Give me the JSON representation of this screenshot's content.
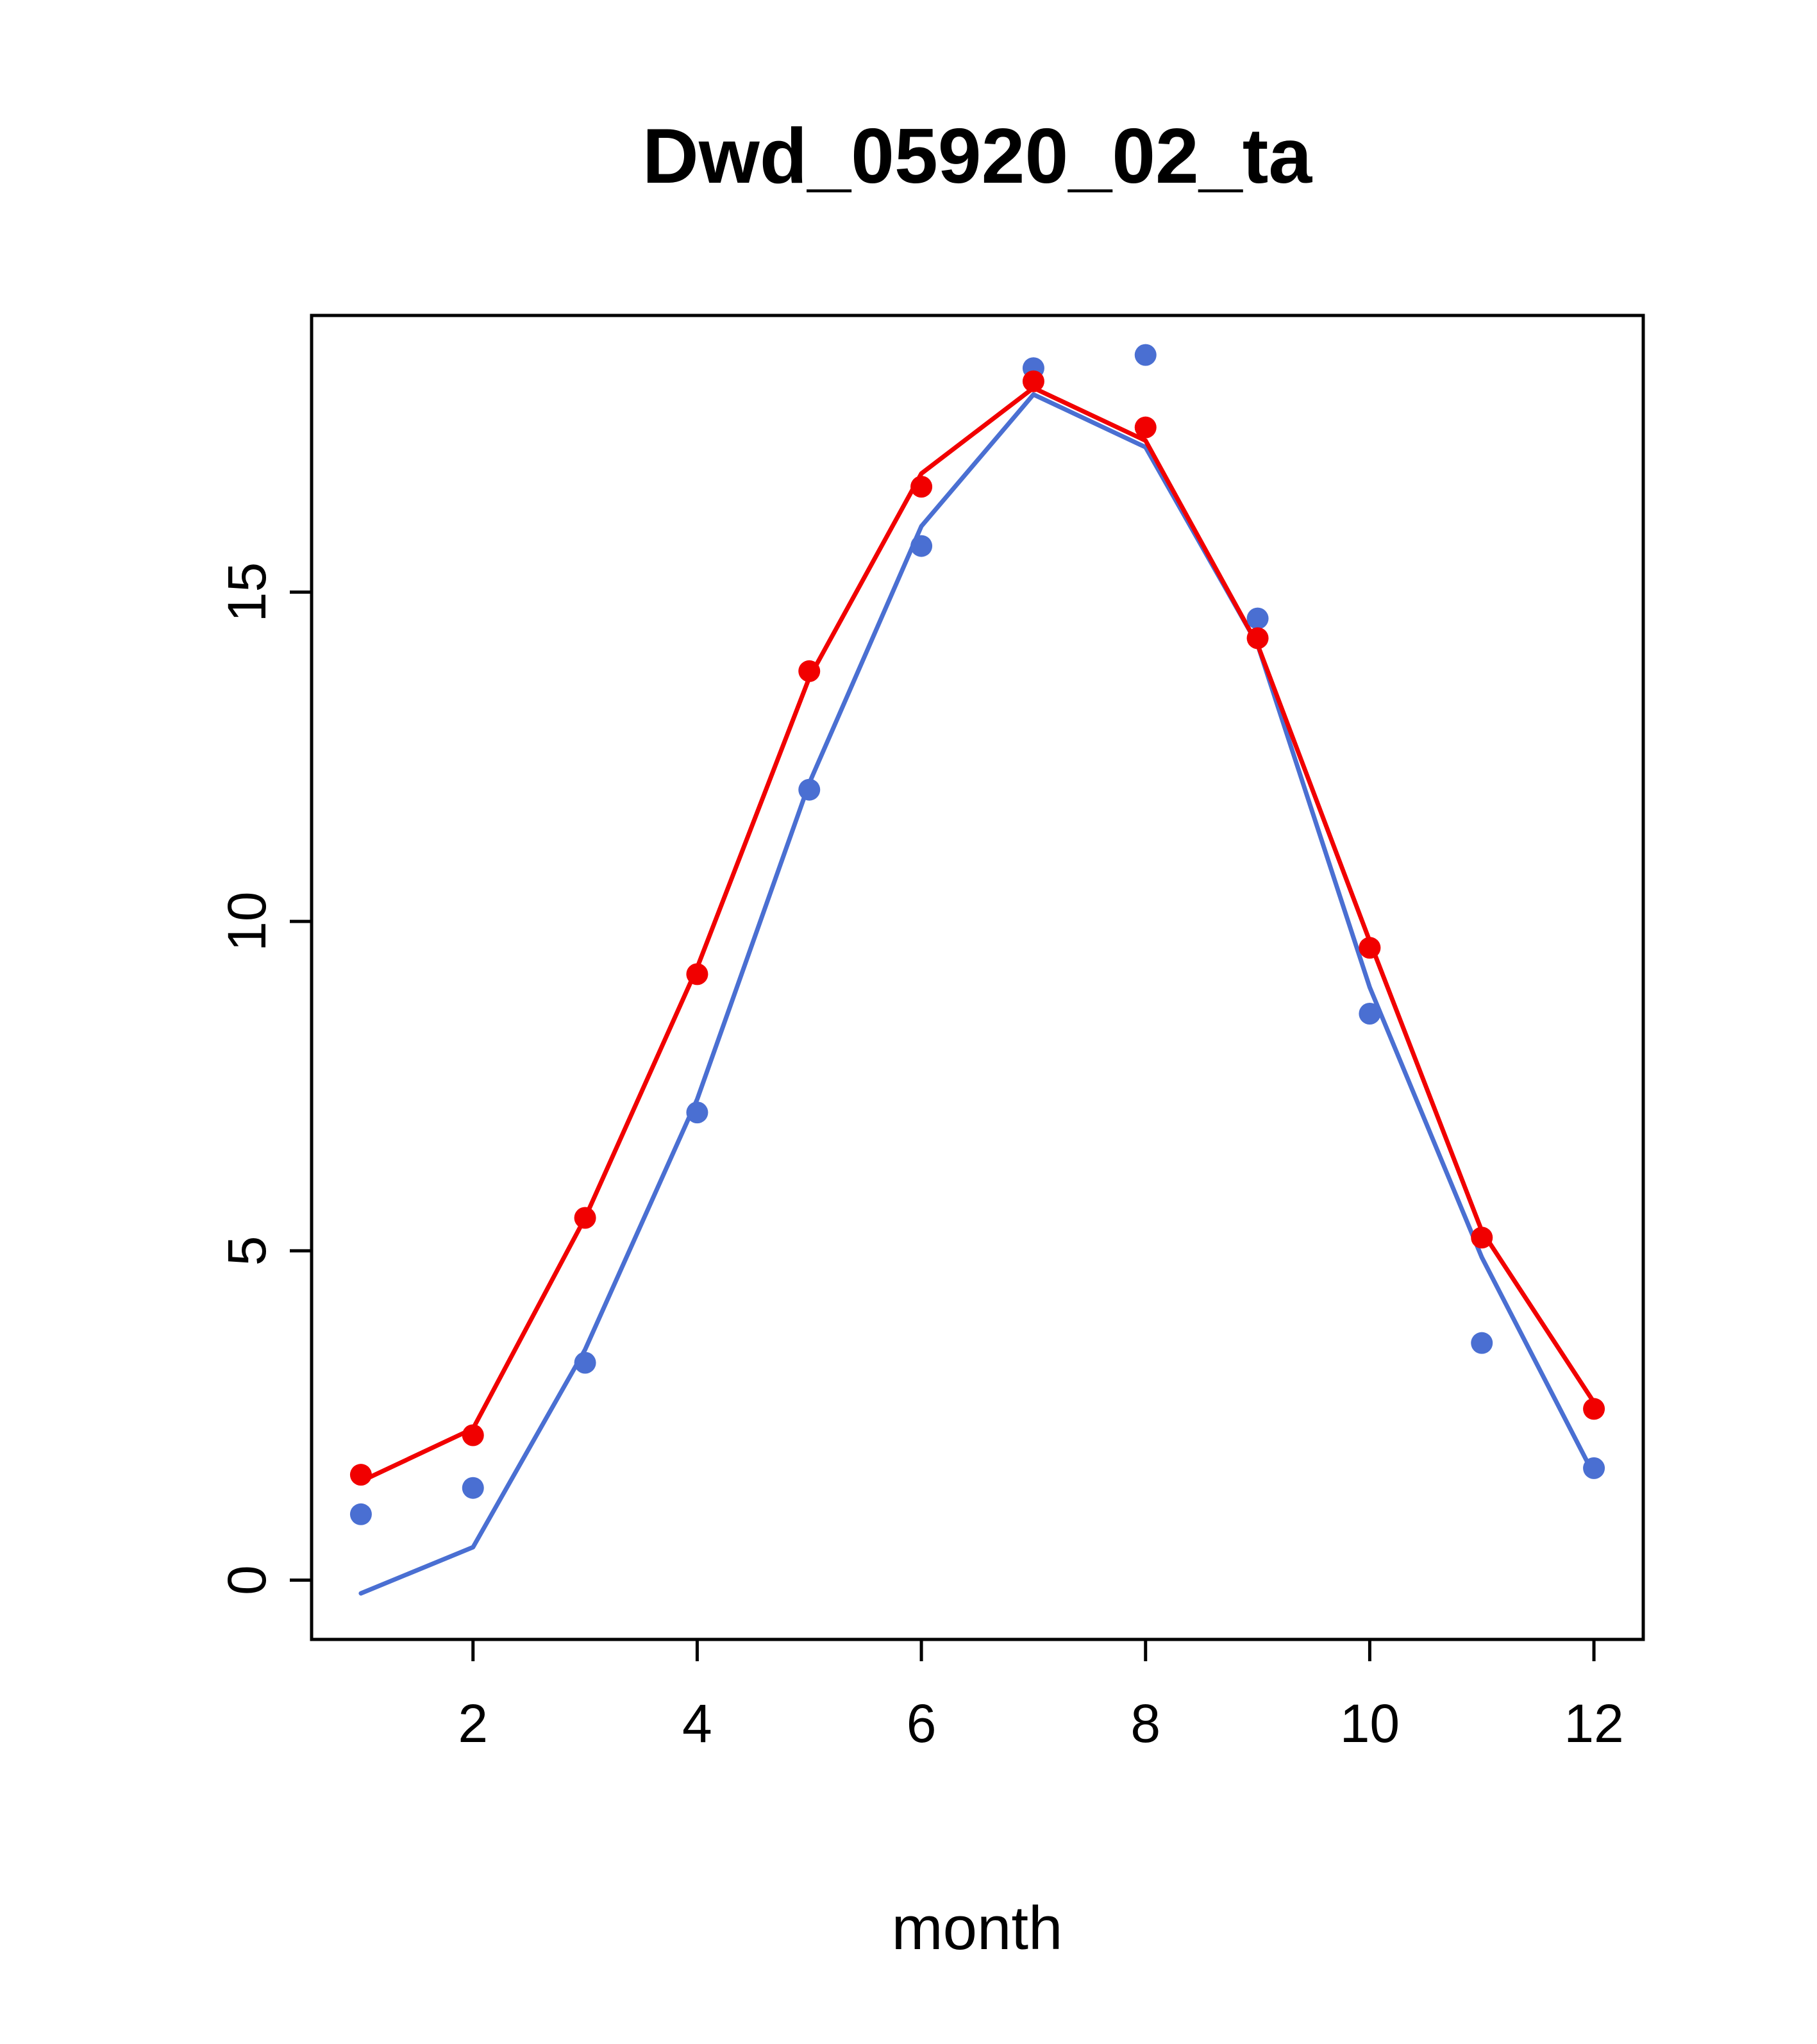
{
  "title": "Dwd_05920_02_ta",
  "chart_data": {
    "type": "scatter",
    "title": "Dwd_05920_02_ta",
    "xlabel": "month",
    "ylabel": "",
    "x": [
      1,
      2,
      3,
      4,
      5,
      6,
      7,
      8,
      9,
      10,
      11,
      12
    ],
    "xlim": [
      0.56,
      12.44
    ],
    "ylim": [
      -0.9,
      19.2
    ],
    "xticks": [
      2,
      4,
      6,
      8,
      10,
      12
    ],
    "yticks": [
      0,
      5,
      10,
      15
    ],
    "grid": false,
    "legend": "none",
    "series": [
      {
        "name": "blue-fitted-line",
        "geom": "line",
        "color": "#4a6fd2",
        "values": [
          -0.2,
          0.5,
          3.5,
          7.3,
          12.1,
          16.0,
          18.0,
          17.2,
          14.2,
          9.0,
          4.9,
          1.6
        ]
      },
      {
        "name": "red-fitted-line",
        "geom": "line",
        "color": "#f10000",
        "values": [
          1.5,
          2.3,
          5.5,
          9.3,
          13.7,
          16.8,
          18.1,
          17.3,
          14.2,
          9.7,
          5.3,
          2.7
        ]
      },
      {
        "name": "blue-points",
        "geom": "point",
        "color": "#4a6fd2",
        "values": [
          1.0,
          1.4,
          3.3,
          7.1,
          12.0,
          15.7,
          18.4,
          18.6,
          14.6,
          8.6,
          3.6,
          1.7
        ]
      },
      {
        "name": "red-points",
        "geom": "point",
        "color": "#f10000",
        "values": [
          1.6,
          2.2,
          5.5,
          9.2,
          13.8,
          16.6,
          18.2,
          17.5,
          14.3,
          9.6,
          5.2,
          2.6
        ]
      }
    ]
  },
  "style": {
    "background": "#ffffff",
    "axis_color": "#000000",
    "red": "#f10000",
    "blue": "#4a6fd2"
  }
}
